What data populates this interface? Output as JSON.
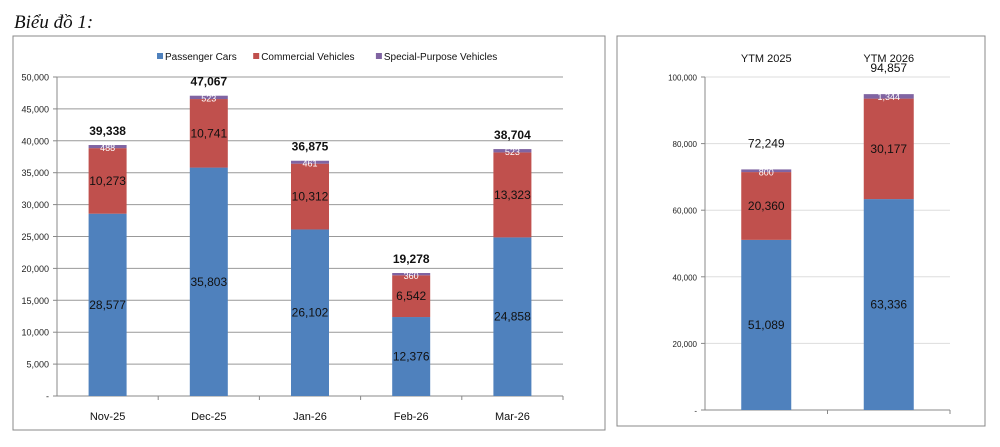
{
  "caption": "Biểu đồ 1:",
  "chart_data": [
    {
      "type": "bar",
      "stacked": true,
      "categories": [
        "Nov-25",
        "Dec-25",
        "Jan-26",
        "Feb-26",
        "Mar-26"
      ],
      "series": [
        {
          "name": "Passenger Cars",
          "color": "#4f81bd",
          "values": [
            28577,
            35803,
            26102,
            12376,
            24858
          ]
        },
        {
          "name": "Commercial Vehicles",
          "color": "#c0504d",
          "values": [
            10273,
            10741,
            10312,
            6542,
            13323
          ]
        },
        {
          "name": "Special-Purpose Vehicles",
          "color": "#8064a2",
          "values": [
            488,
            523,
            461,
            360,
            523
          ]
        }
      ],
      "totals": [
        39338,
        47067,
        36875,
        19278,
        38704
      ],
      "ylim": [
        0,
        50000
      ],
      "yticks": [
        "-",
        "5,000",
        "10,000",
        "15,000",
        "20,000",
        "25,000",
        "30,000",
        "35,000",
        "40,000",
        "45,000",
        "50,000"
      ],
      "grid": true,
      "legend": "top"
    },
    {
      "type": "bar",
      "stacked": true,
      "categories": [
        "YTM 2025",
        "YTM 2026"
      ],
      "series": [
        {
          "color": "#4f81bd",
          "values": [
            51089,
            63336
          ]
        },
        {
          "color": "#c0504d",
          "values": [
            20360,
            30177
          ]
        },
        {
          "color": "#8064a2",
          "values": [
            800,
            1344
          ]
        }
      ],
      "totals": [
        72249,
        94857
      ],
      "ylim": [
        0,
        100000
      ],
      "yticks": [
        "-",
        "20,000",
        "40,000",
        "60,000",
        "80,000",
        "100,000"
      ],
      "grid": true,
      "category_labels_position": "top"
    }
  ]
}
